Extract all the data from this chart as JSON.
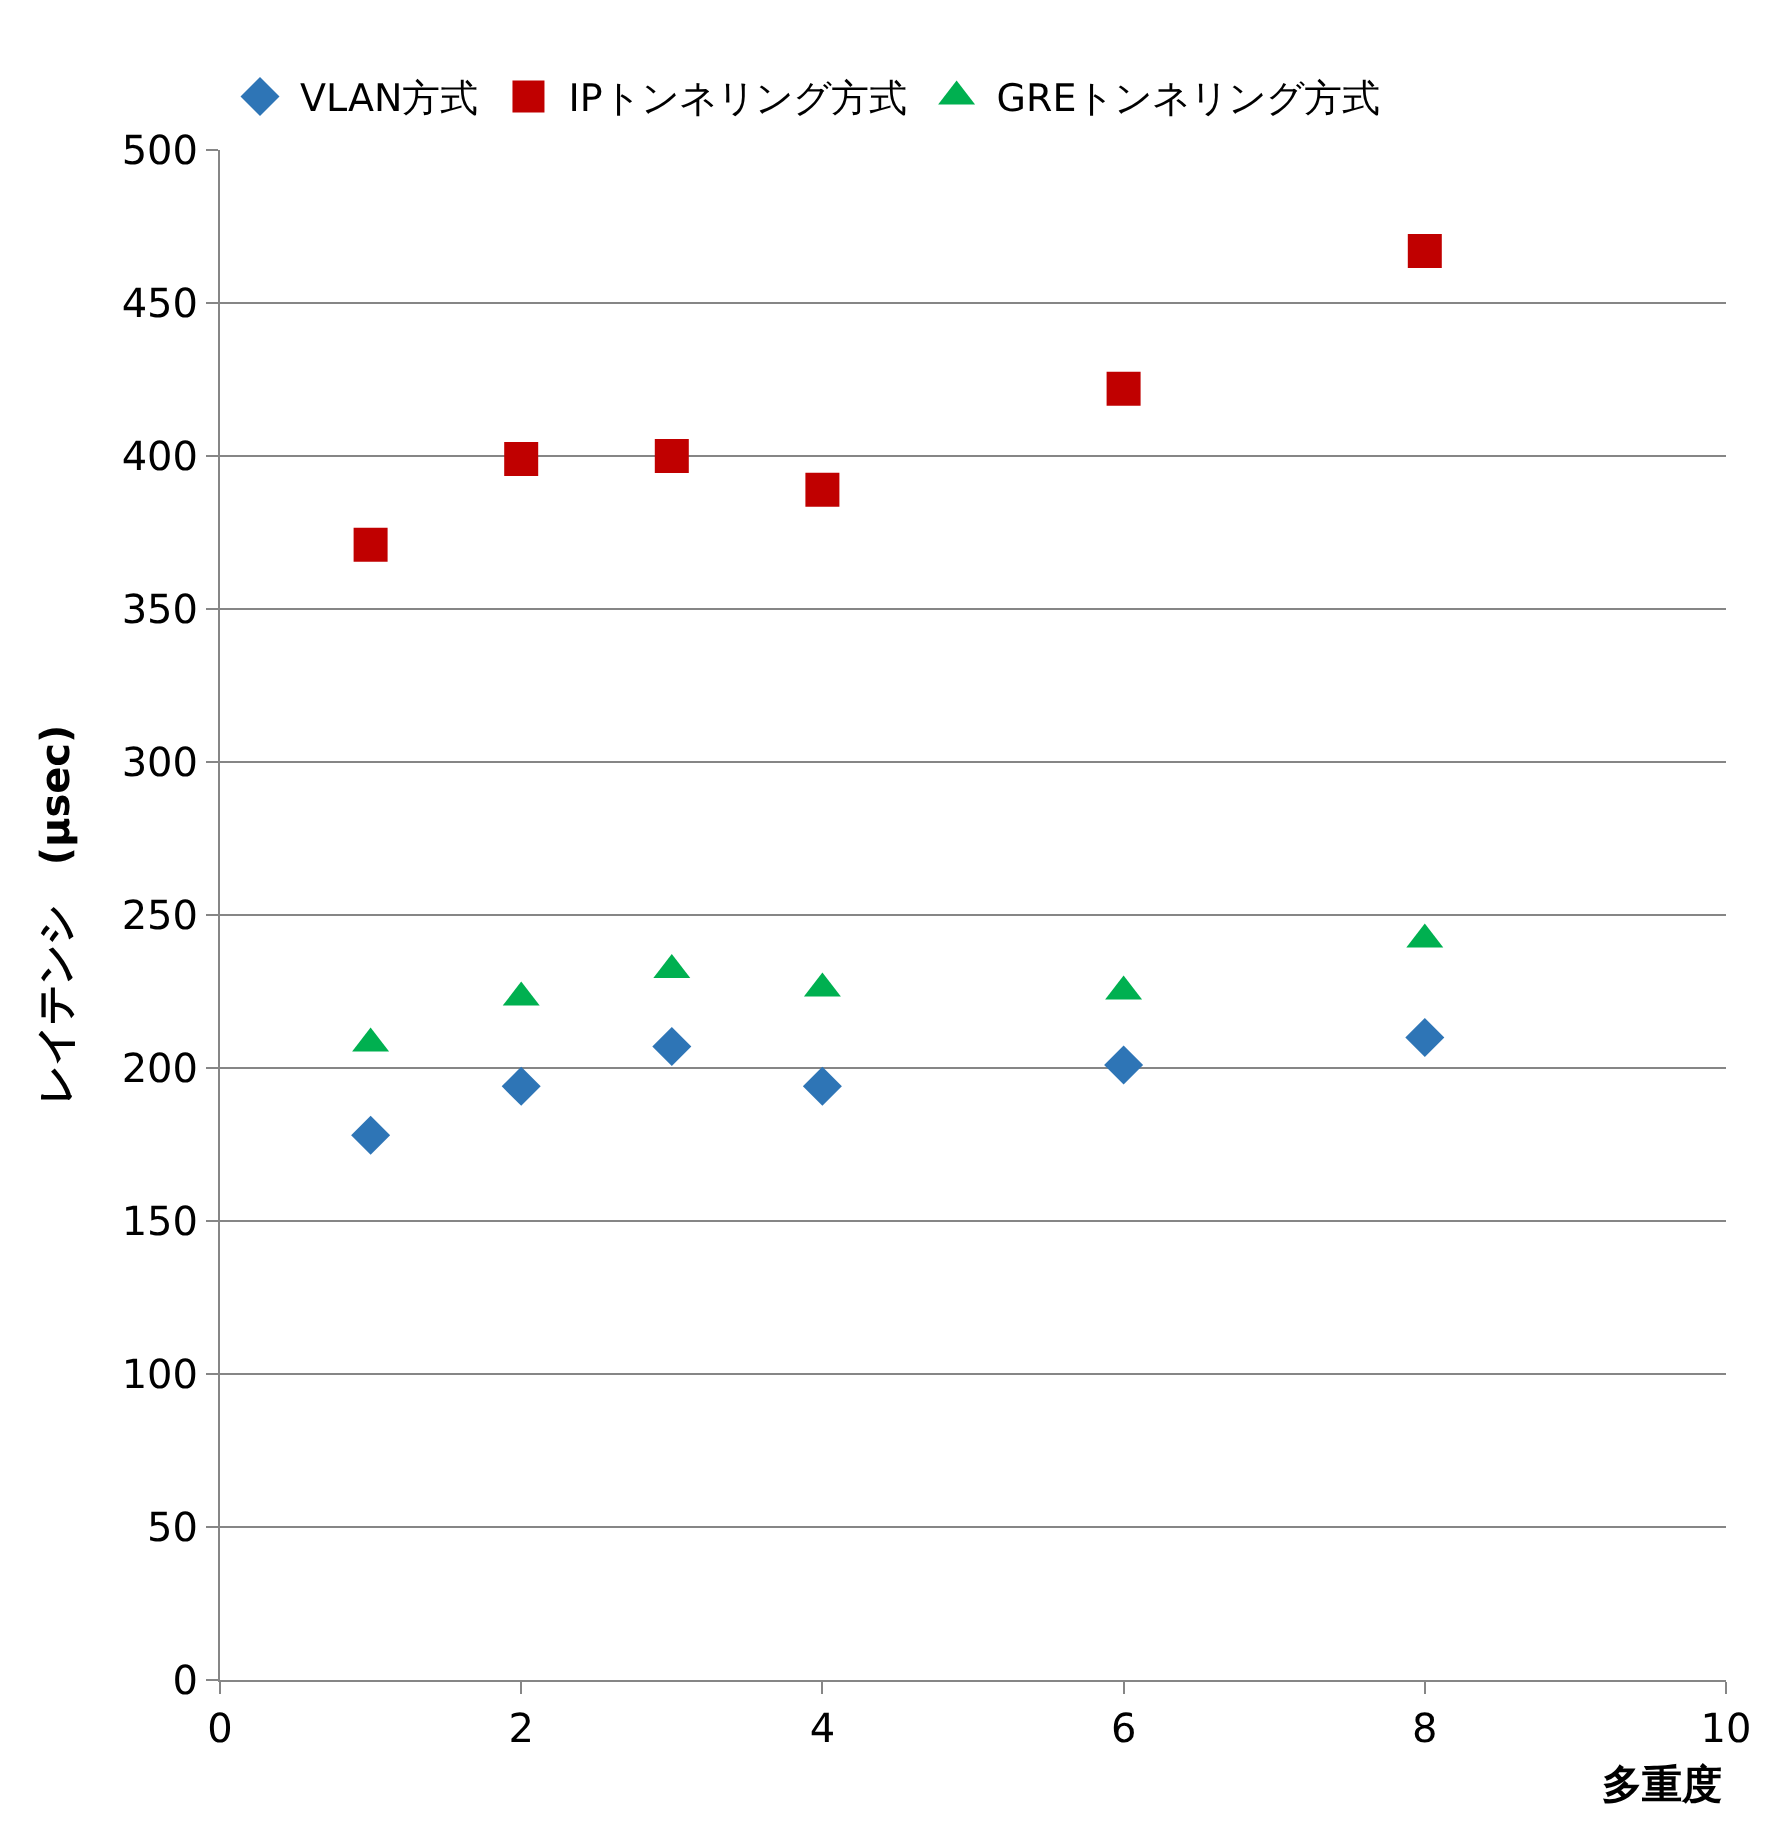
{
  "chart_data": {
    "type": "scatter",
    "xlabel": "多重度",
    "ylabel": "レイテンシ　(μsec)",
    "x": [
      1,
      2,
      3,
      4,
      6,
      8
    ],
    "series": [
      {
        "name": "VLAN方式",
        "color": "#2e75b6",
        "marker": "diamond",
        "values": [
          178,
          194,
          207,
          194,
          201,
          210
        ]
      },
      {
        "name": "IPトンネリング方式",
        "color": "#c00000",
        "marker": "square",
        "values": [
          371,
          399,
          400,
          389,
          422,
          467
        ]
      },
      {
        "name": "GREトンネリング方式",
        "color": "#00b050",
        "marker": "triangle",
        "values": [
          208,
          223,
          232,
          226,
          225,
          242
        ]
      }
    ],
    "xlim": [
      0,
      10
    ],
    "xticks": [
      0,
      2,
      4,
      6,
      8,
      10
    ],
    "ylim": [
      0,
      500
    ],
    "yticks": [
      0,
      50,
      100,
      150,
      200,
      250,
      300,
      350,
      400,
      450,
      500
    ],
    "grid": "y",
    "legend": "top left"
  }
}
